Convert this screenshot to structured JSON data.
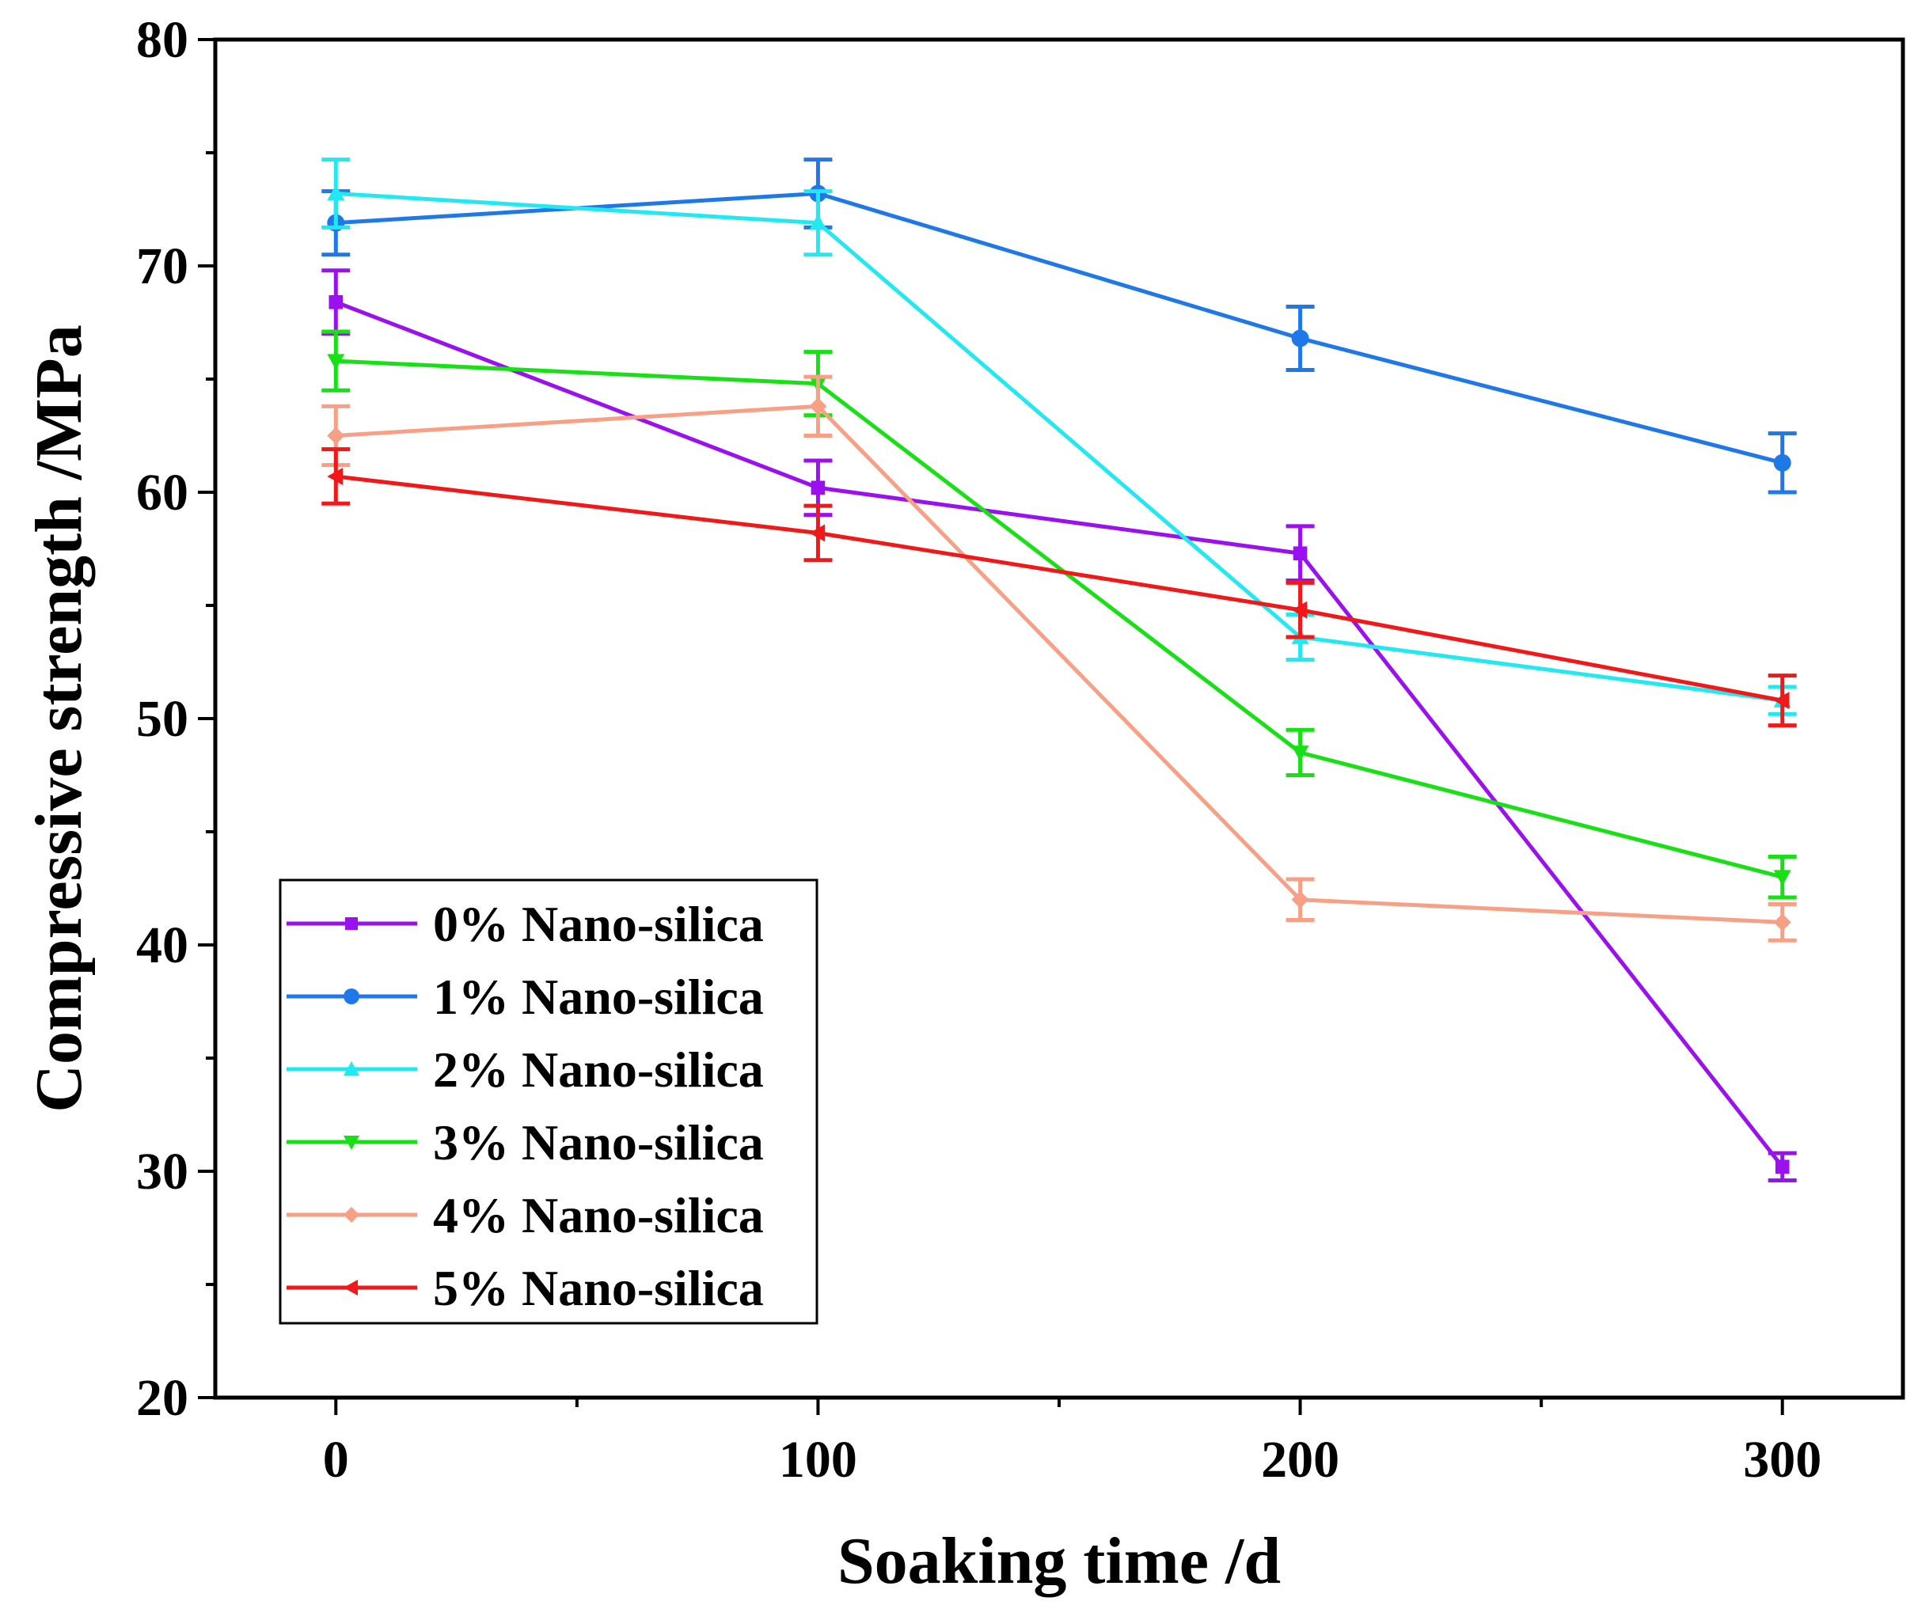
{
  "chart_data": {
    "type": "line",
    "xlabel": "Soaking time /d",
    "ylabel": "Compressive strength /MPa",
    "x": [
      0,
      100,
      200,
      300
    ],
    "xticks": [
      0,
      100,
      200,
      300
    ],
    "xtick_labels": [
      "0",
      "100",
      "200",
      "300"
    ],
    "xlim": [
      -25,
      325
    ],
    "yticks": [
      20,
      30,
      40,
      50,
      60,
      70,
      80
    ],
    "ytick_labels": [
      "20",
      "30",
      "40",
      "50",
      "60",
      "70",
      "80"
    ],
    "ylim": [
      20,
      80
    ],
    "grid": false,
    "legend_position": "bottom-left",
    "series": [
      {
        "name": "0% Nano-silica",
        "color": "#9B10EE",
        "marker": "square",
        "values": [
          68.4,
          60.2,
          57.3,
          30.2
        ],
        "errors": [
          1.4,
          1.2,
          1.2,
          0.6
        ]
      },
      {
        "name": "1% Nano-silica",
        "color": "#1F78E8",
        "marker": "circle",
        "values": [
          71.9,
          73.2,
          66.8,
          61.3
        ],
        "errors": [
          1.4,
          1.5,
          1.4,
          1.3
        ]
      },
      {
        "name": "2% Nano-silica",
        "color": "#22E8F2",
        "marker": "triangle-up",
        "values": [
          73.2,
          71.9,
          53.6,
          50.8
        ],
        "errors": [
          1.5,
          1.4,
          1.0,
          0.6
        ]
      },
      {
        "name": "3% Nano-silica",
        "color": "#17E015",
        "marker": "triangle-down",
        "values": [
          65.8,
          64.8,
          48.5,
          43.0
        ],
        "errors": [
          1.3,
          1.4,
          1.0,
          0.9
        ]
      },
      {
        "name": "4% Nano-silica",
        "color": "#F7A085",
        "marker": "diamond",
        "values": [
          62.5,
          63.8,
          42.0,
          41.0
        ],
        "errors": [
          1.3,
          1.3,
          0.9,
          0.8
        ]
      },
      {
        "name": "5% Nano-silica",
        "color": "#F01818",
        "marker": "triangle-left",
        "values": [
          60.7,
          58.2,
          54.8,
          50.8
        ],
        "errors": [
          1.2,
          1.2,
          1.2,
          1.1
        ]
      }
    ]
  }
}
